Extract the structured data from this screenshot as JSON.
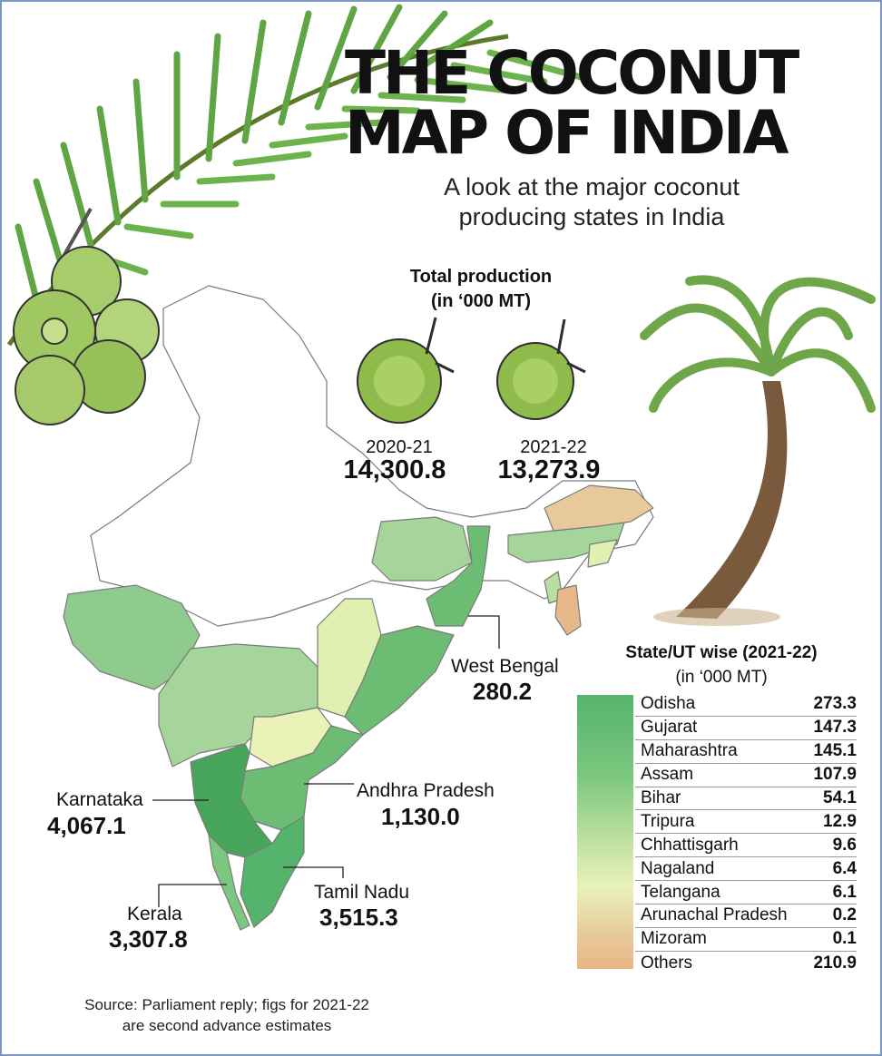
{
  "title": {
    "line1": "THE COCONUT",
    "line2": "MAP OF INDIA"
  },
  "subtitle": {
    "line1": "A look at the major coconut",
    "line2": "producing states in India"
  },
  "total_production": {
    "heading_line1": "Total production",
    "heading_line2": "(in ‘000 MT)",
    "items": [
      {
        "year": "2020-21",
        "value": "14,300.8"
      },
      {
        "year": "2021-22",
        "value": "13,273.9"
      }
    ]
  },
  "map_labels": {
    "west_bengal": {
      "name": "West Bengal",
      "value": "280.2"
    },
    "karnataka": {
      "name": "Karnataka",
      "value": "4,067.1"
    },
    "andhra_pradesh": {
      "name": "Andhra Pradesh",
      "value": "1,130.0"
    },
    "tamil_nadu": {
      "name": "Tamil Nadu",
      "value": "3,515.3"
    },
    "kerala": {
      "name": "Kerala",
      "value": "3,307.8"
    }
  },
  "legend": {
    "heading_line1": "State/UT wise (2021-22)",
    "heading_line2": "(in ‘000 MT)",
    "rows": [
      {
        "state": "Odisha",
        "value": "273.3"
      },
      {
        "state": "Gujarat",
        "value": "147.3"
      },
      {
        "state": "Maharashtra",
        "value": "145.1"
      },
      {
        "state": "Assam",
        "value": "107.9"
      },
      {
        "state": "Bihar",
        "value": "54.1"
      },
      {
        "state": "Tripura",
        "value": "12.9"
      },
      {
        "state": "Chhattisgarh",
        "value": "9.6"
      },
      {
        "state": "Nagaland",
        "value": "6.4"
      },
      {
        "state": "Telangana",
        "value": "6.1"
      },
      {
        "state": "Arunachal Pradesh",
        "value": "0.2"
      },
      {
        "state": "Mizoram",
        "value": "0.1"
      },
      {
        "state": "Others",
        "value": "210.9"
      }
    ],
    "scale_colors": [
      "#55b46b",
      "#7cc77f",
      "#c3e3a4",
      "#e9f1b9",
      "#e7c99b",
      "#eab583"
    ]
  },
  "source": {
    "line1": "Source: Parliament reply; figs for 2021-22",
    "line2": "are second advance estimates"
  },
  "colors": {
    "high": "#4faa62",
    "mid": "#8ecb8d",
    "low": "#dff0b0",
    "orange": "#e8b982",
    "coconut": "#8fbb4a",
    "palm": "#6fa64a"
  }
}
